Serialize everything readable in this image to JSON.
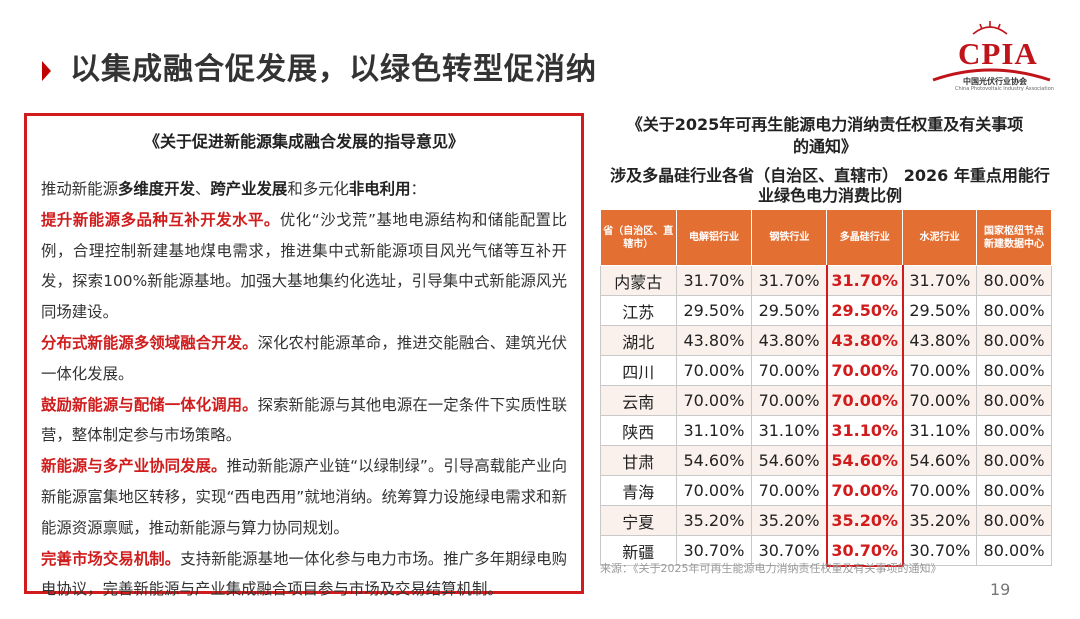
{
  "header": {
    "title": "以集成融合促发展，以绿色转型促消纳",
    "logo_text": "CPIA",
    "logo_subtitle": "中国光伏行业协会",
    "logo_subtitle_en": "China Photovoltaic Industry Association"
  },
  "left_panel": {
    "title": "《关于促进新能源集成融合发展的指导意见》",
    "intro": {
      "t1": "推动新能源",
      "b1": "多维度开发",
      "t2": "、",
      "b2": "跨产业发展",
      "t3": "和多元化",
      "b3": "非电利用",
      "t4": "："
    },
    "sections": [
      {
        "heading": "提升新能源多品种互补开发水平。",
        "body": "优化“沙戈荒”基地电源结构和储能配置比例，合理控制新建基地煤电需求，推进集中式新能源项目风光气储等互补开发，探索100%新能源基地。加强大基地集约化选址，引导集中式新能源风光同场建设。"
      },
      {
        "heading": "分布式新能源多领域融合开发。",
        "body": "深化农村能源革命，推进交能融合、建筑光伏一体化发展。"
      },
      {
        "heading": "鼓励新能源与配储一体化调用。",
        "body": "探索新能源与其他电源在一定条件下实质性联营，整体制定参与市场策略。"
      },
      {
        "heading": "新能源与多产业协同发展。",
        "body": "推动新能源产业链“以绿制绿”。引导高载能产业向新能源富集地区转移，实现“西电西用”就地消纳。统筹算力设施绿电需求和新能源资源禀赋，推动新能源与算力协同规划。"
      },
      {
        "heading": "完善市场交易机制。",
        "body": "支持新能源基地一体化参与电力市场。推广多年期绿电购电协议，完善新能源与产业集成融合项目参与市场及交易结算机制。"
      }
    ]
  },
  "right_panel": {
    "notice_title": "《关于2025年可再生能源电力消纳责任权重及有关事项的通知》",
    "table_title": "涉及多晶硅行业各省（自治区、直辖市） 2026 年重点用能行业绿色电力消费比例",
    "table": {
      "headers": [
        "省（自治区、直辖市）",
        "电解铝行业",
        "钢铁行业",
        "多晶硅行业",
        "水泥行业",
        "国家枢纽节点新建数据中心"
      ],
      "rows": [
        [
          "内蒙古",
          "31.70%",
          "31.70%",
          "31.70%",
          "31.70%",
          "80.00%"
        ],
        [
          "江苏",
          "29.50%",
          "29.50%",
          "29.50%",
          "29.50%",
          "80.00%"
        ],
        [
          "湖北",
          "43.80%",
          "43.80%",
          "43.80%",
          "43.80%",
          "80.00%"
        ],
        [
          "四川",
          "70.00%",
          "70.00%",
          "70.00%",
          "70.00%",
          "80.00%"
        ],
        [
          "云南",
          "70.00%",
          "70.00%",
          "70.00%",
          "70.00%",
          "80.00%"
        ],
        [
          "陕西",
          "31.10%",
          "31.10%",
          "31.10%",
          "31.10%",
          "80.00%"
        ],
        [
          "甘肃",
          "54.60%",
          "54.60%",
          "54.60%",
          "54.60%",
          "80.00%"
        ],
        [
          "青海",
          "70.00%",
          "70.00%",
          "70.00%",
          "70.00%",
          "80.00%"
        ],
        [
          "宁夏",
          "35.20%",
          "35.20%",
          "35.20%",
          "35.20%",
          "80.00%"
        ],
        [
          "新疆",
          "30.70%",
          "30.70%",
          "30.70%",
          "30.70%",
          "80.00%"
        ]
      ],
      "highlight_column": 3,
      "header_color": "#e46f32",
      "highlight_color": "#d01c1c"
    },
    "source": "来源：《关于2025年可再生能源电力消纳责任权重及有关事项的通知》"
  },
  "footer": {
    "page_number": "19"
  }
}
